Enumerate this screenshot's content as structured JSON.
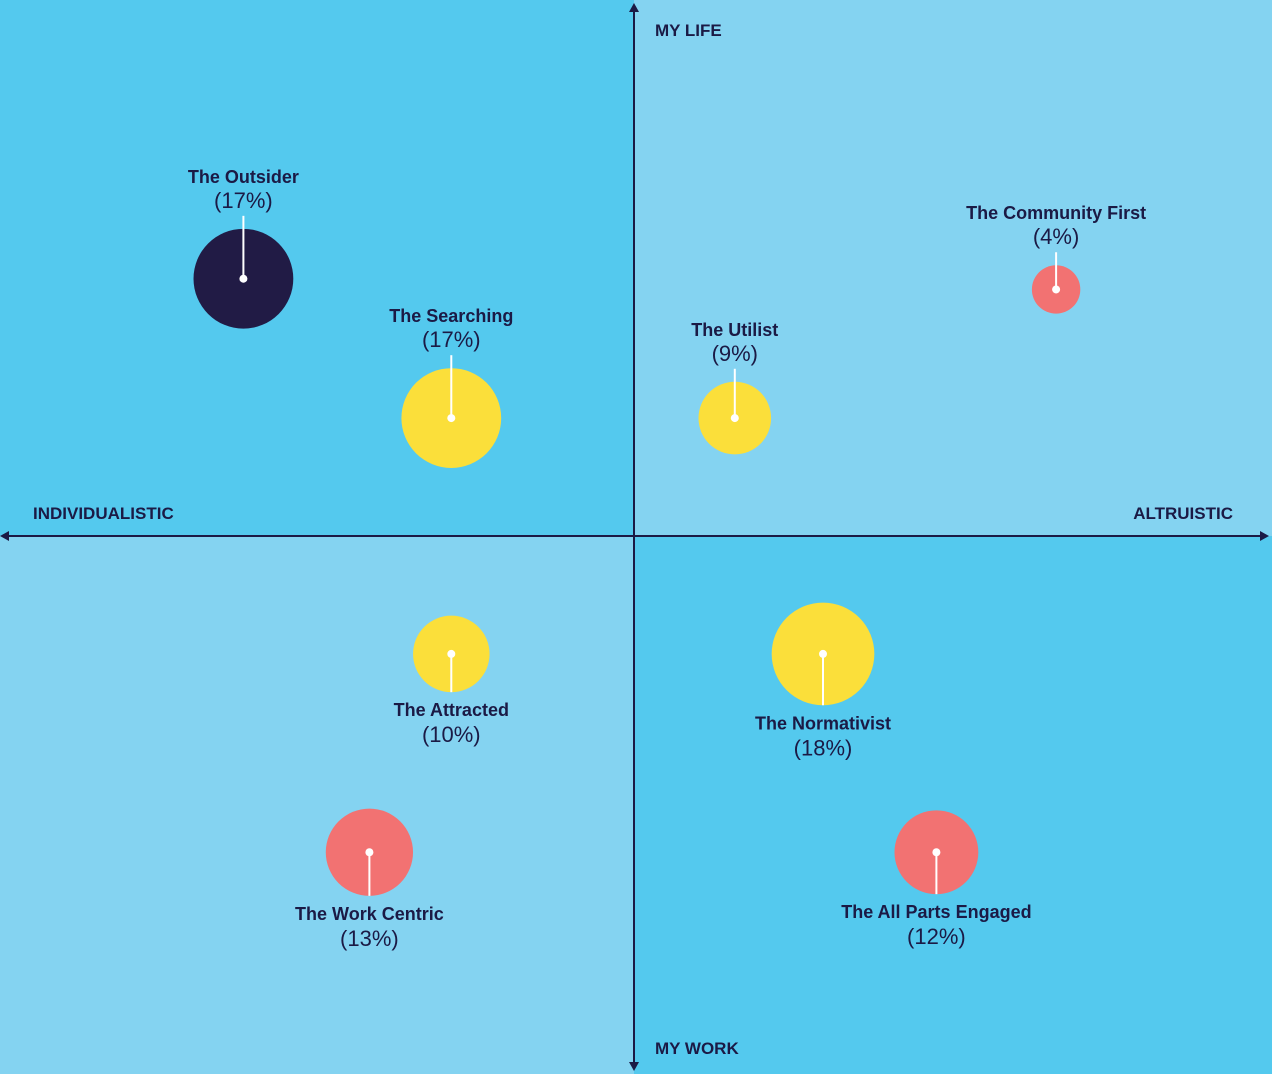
{
  "chart_data": {
    "type": "scatter",
    "axes": {
      "top": "MY LIFE",
      "bottom": "MY WORK",
      "left": "INDIVIDUALISTIC",
      "right": "ALTRUISTIC"
    },
    "xlim": [
      -1,
      1
    ],
    "ylim": [
      -1,
      1
    ],
    "grid": false,
    "quadrant_colors": {
      "top_left": "#54c9ee",
      "top_right": "#84d3f1",
      "bottom_left": "#84d3f1",
      "bottom_right": "#54c9ee"
    },
    "axis_color": "#1b1a45",
    "points": [
      {
        "name": "The Outsider",
        "pct_label": "(17%)",
        "value": 17,
        "x": -0.62,
        "y": 0.48,
        "color": "#211b45",
        "label_pos": "above"
      },
      {
        "name": "The Searching",
        "pct_label": "(17%)",
        "value": 17,
        "x": -0.29,
        "y": 0.22,
        "color": "#fbdf3a",
        "label_pos": "above"
      },
      {
        "name": "The Utilist",
        "pct_label": "(9%)",
        "value": 9,
        "x": 0.16,
        "y": 0.22,
        "color": "#fbdf3a",
        "label_pos": "above"
      },
      {
        "name": "The Community First",
        "pct_label": "(4%)",
        "value": 4,
        "x": 0.67,
        "y": 0.46,
        "color": "#f27272",
        "label_pos": "above"
      },
      {
        "name": "The Attracted",
        "pct_label": "(10%)",
        "value": 10,
        "x": -0.29,
        "y": -0.22,
        "color": "#fbdf3a",
        "label_pos": "below"
      },
      {
        "name": "The Normativist",
        "pct_label": "(18%)",
        "value": 18,
        "x": 0.3,
        "y": -0.22,
        "color": "#fbdf3a",
        "label_pos": "below"
      },
      {
        "name": "The Work Centric",
        "pct_label": "(13%)",
        "value": 13,
        "x": -0.42,
        "y": -0.59,
        "color": "#f27272",
        "label_pos": "below"
      },
      {
        "name": "The All Parts Engaged",
        "pct_label": "(12%)",
        "value": 12,
        "x": 0.48,
        "y": -0.59,
        "color": "#f27272",
        "label_pos": "below"
      }
    ]
  }
}
